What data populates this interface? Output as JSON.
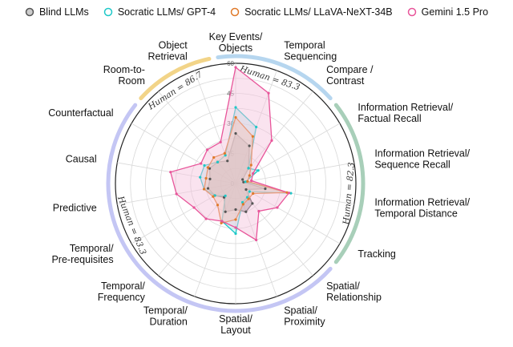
{
  "chart_data": {
    "type": "radar",
    "rlim": [
      0,
      60
    ],
    "radial_ticks": [
      0,
      15,
      30,
      45,
      60
    ],
    "grid": true,
    "legend_position": "top",
    "axes": [
      "Key Events/\nObjects",
      "Temporal\nSequencing",
      "Compare /\nContrast",
      "Information Retrieval/\nFactual Recall",
      "Information Retrieval/\nSequence Recall",
      "Information Retrieval/\nTemporal Distance",
      "Tracking",
      "Spatial/\nRelationship",
      "Spatial/\nProximity",
      "Spatial/\nLayout",
      "Temporal/\nDuration",
      "Temporal/\nFrequency",
      "Temporal/\nPre-requisites",
      "Predictive",
      "Causal",
      "Counterfactual",
      "Room-to-\nRoom",
      "Object\nRetrieval"
    ],
    "series": [
      {
        "name": "Blind LLMs",
        "color": "#555555",
        "fill": "#777777",
        "marker": "circle",
        "values": [
          25,
          20,
          10,
          4,
          4,
          15,
          6,
          13,
          15,
          13,
          15,
          9,
          12,
          14,
          13,
          15,
          14,
          12
        ]
      },
      {
        "name": "Socratic LLMs/ GPT-4",
        "color": "#1ec8c8",
        "fill": "#a8eaea",
        "marker": "circle",
        "values": [
          38,
          30,
          10,
          13,
          5,
          28,
          8,
          9,
          10,
          25,
          20,
          8,
          12,
          16,
          18,
          18,
          14,
          15
        ]
      },
      {
        "name": "Socratic LLMs/ LLaVA-NeXT-34B",
        "color": "#e07a2a",
        "fill": "#f3c9a2",
        "marker": "circle",
        "values": [
          33,
          25,
          12,
          8,
          6,
          26,
          10,
          10,
          11,
          18,
          21,
          14,
          13,
          16,
          15,
          16,
          17,
          16
        ]
      },
      {
        "name": "Gemini 1.5 Pro",
        "color": "#e8559a",
        "fill": "#f5c0dc",
        "marker": "circle",
        "values": [
          58,
          48,
          28,
          10,
          8,
          27,
          24,
          18,
          30,
          22,
          20,
          23,
          24,
          30,
          33,
          20,
          22,
          22
        ]
      }
    ],
    "groups": [
      {
        "human_label": "Human = 86.7",
        "color": "#f2d488",
        "start": 16,
        "end": 17
      },
      {
        "human_label": "Human = 83.3",
        "color": "#b6d6ef",
        "start": 0,
        "end": 2
      },
      {
        "human_label": "Human = 82.3",
        "color": "#a8cfb9",
        "start": 3,
        "end": 6
      },
      {
        "human_label": "Human = 83.3",
        "color": "#c4c6f4",
        "start": 7,
        "end": 15
      }
    ]
  }
}
